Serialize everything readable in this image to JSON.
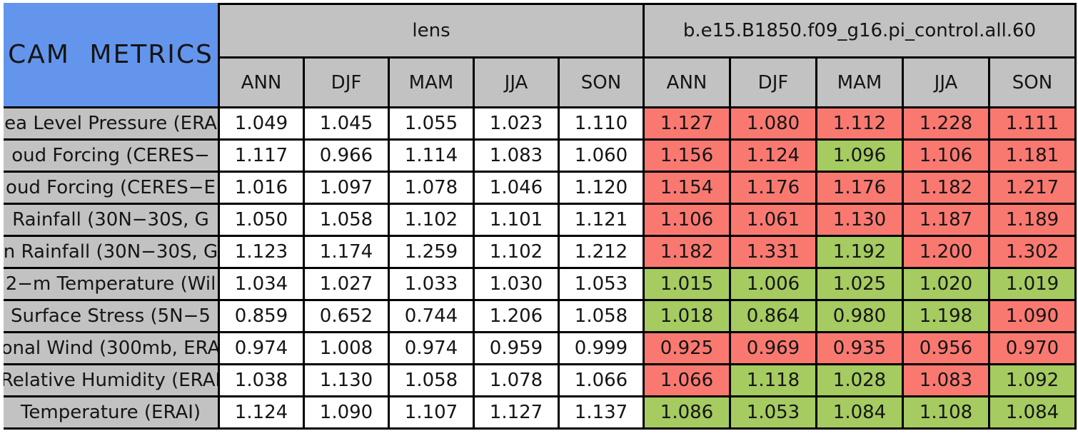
{
  "title": "CAM METRICS",
  "groups": [
    {
      "label": "lens"
    },
    {
      "label": "b.e15.B1850.f09_g16.pi_control.all.60"
    }
  ],
  "seasons": [
    "ANN",
    "DJF",
    "MAM",
    "JJA",
    "SON"
  ],
  "colors": {
    "title_bg": "#6495ed",
    "header_bg": "#c2c2c2",
    "lens_cell_bg": "#ffffff",
    "worse_red": "#f97971",
    "better_green": "#a5cb61",
    "border": "#000000"
  },
  "rows": [
    {
      "label": "ea Level Pressure (ERA",
      "lens": [
        "1.049",
        "1.045",
        "1.055",
        "1.023",
        "1.110"
      ],
      "control": [
        "1.127",
        "1.080",
        "1.112",
        "1.228",
        "1.111"
      ],
      "control_bg": [
        "#f97971",
        "#f97971",
        "#f97971",
        "#f97971",
        "#f97971"
      ]
    },
    {
      "label": "oud Forcing (CERES−",
      "lens": [
        "1.117",
        "0.966",
        "1.114",
        "1.083",
        "1.060"
      ],
      "control": [
        "1.156",
        "1.124",
        "1.096",
        "1.106",
        "1.181"
      ],
      "control_bg": [
        "#f97971",
        "#f97971",
        "#a5cb61",
        "#f97971",
        "#f97971"
      ]
    },
    {
      "label": "oud Forcing (CERES−E",
      "lens": [
        "1.016",
        "1.097",
        "1.078",
        "1.046",
        "1.120"
      ],
      "control": [
        "1.154",
        "1.176",
        "1.176",
        "1.182",
        "1.217"
      ],
      "control_bg": [
        "#f97971",
        "#f97971",
        "#f97971",
        "#f97971",
        "#f97971"
      ]
    },
    {
      "label": "Rainfall (30N−30S, G",
      "lens": [
        "1.050",
        "1.058",
        "1.102",
        "1.101",
        "1.121"
      ],
      "control": [
        "1.106",
        "1.061",
        "1.130",
        "1.187",
        "1.189"
      ],
      "control_bg": [
        "#f97971",
        "#f97971",
        "#f97971",
        "#f97971",
        "#f97971"
      ]
    },
    {
      "label": "n Rainfall (30N−30S, G",
      "lens": [
        "1.123",
        "1.174",
        "1.259",
        "1.102",
        "1.212"
      ],
      "control": [
        "1.182",
        "1.331",
        "1.192",
        "1.200",
        "1.302"
      ],
      "control_bg": [
        "#f97971",
        "#f97971",
        "#a5cb61",
        "#f97971",
        "#f97971"
      ]
    },
    {
      "label": "2−m Temperature (Wil",
      "lens": [
        "1.034",
        "1.027",
        "1.033",
        "1.030",
        "1.053"
      ],
      "control": [
        "1.015",
        "1.006",
        "1.025",
        "1.020",
        "1.019"
      ],
      "control_bg": [
        "#a5cb61",
        "#a5cb61",
        "#a5cb61",
        "#a5cb61",
        "#a5cb61"
      ]
    },
    {
      "label": "Surface Stress (5N−5",
      "lens": [
        "0.859",
        "0.652",
        "0.744",
        "1.206",
        "1.058"
      ],
      "control": [
        "1.018",
        "0.864",
        "0.980",
        "1.198",
        "1.090"
      ],
      "control_bg": [
        "#a5cb61",
        "#a5cb61",
        "#a5cb61",
        "#a5cb61",
        "#f97971"
      ]
    },
    {
      "label": "onal Wind (300mb, ERA",
      "lens": [
        "0.974",
        "1.008",
        "0.974",
        "0.959",
        "0.999"
      ],
      "control": [
        "0.925",
        "0.969",
        "0.935",
        "0.956",
        "0.970"
      ],
      "control_bg": [
        "#f97971",
        "#f97971",
        "#f97971",
        "#f97971",
        "#f97971"
      ]
    },
    {
      "label": "Relative Humidity (ERAI",
      "lens": [
        "1.038",
        "1.130",
        "1.058",
        "1.078",
        "1.066"
      ],
      "control": [
        "1.066",
        "1.118",
        "1.028",
        "1.083",
        "1.092"
      ],
      "control_bg": [
        "#f97971",
        "#a5cb61",
        "#a5cb61",
        "#f97971",
        "#a5cb61"
      ]
    },
    {
      "label": "Temperature (ERAI)",
      "lens": [
        "1.124",
        "1.090",
        "1.107",
        "1.127",
        "1.137"
      ],
      "control": [
        "1.086",
        "1.053",
        "1.084",
        "1.108",
        "1.084"
      ],
      "control_bg": [
        "#a5cb61",
        "#a5cb61",
        "#a5cb61",
        "#a5cb61",
        "#a5cb61"
      ]
    }
  ],
  "chart_data": {
    "type": "table",
    "title": "CAM METRICS",
    "column_groups": [
      "lens",
      "b.e15.B1850.f09_g16.pi_control.all.60"
    ],
    "columns": [
      "ANN",
      "DJF",
      "MAM",
      "JJA",
      "SON"
    ],
    "rows": [
      {
        "label": "ea Level Pressure (ERA",
        "lens": [
          1.049,
          1.045,
          1.055,
          1.023,
          1.11
        ],
        "control": [
          1.127,
          1.08,
          1.112,
          1.228,
          1.111
        ],
        "control_highlight": [
          "red",
          "red",
          "red",
          "red",
          "red"
        ]
      },
      {
        "label": "oud Forcing (CERES−",
        "lens": [
          1.117,
          0.966,
          1.114,
          1.083,
          1.06
        ],
        "control": [
          1.156,
          1.124,
          1.096,
          1.106,
          1.181
        ],
        "control_highlight": [
          "red",
          "red",
          "green",
          "red",
          "red"
        ]
      },
      {
        "label": "oud Forcing (CERES−E",
        "lens": [
          1.016,
          1.097,
          1.078,
          1.046,
          1.12
        ],
        "control": [
          1.154,
          1.176,
          1.176,
          1.182,
          1.217
        ],
        "control_highlight": [
          "red",
          "red",
          "red",
          "red",
          "red"
        ]
      },
      {
        "label": "Rainfall (30N−30S, G",
        "lens": [
          1.05,
          1.058,
          1.102,
          1.101,
          1.121
        ],
        "control": [
          1.106,
          1.061,
          1.13,
          1.187,
          1.189
        ],
        "control_highlight": [
          "red",
          "red",
          "red",
          "red",
          "red"
        ]
      },
      {
        "label": "n Rainfall (30N−30S, G",
        "lens": [
          1.123,
          1.174,
          1.259,
          1.102,
          1.212
        ],
        "control": [
          1.182,
          1.331,
          1.192,
          1.2,
          1.302
        ],
        "control_highlight": [
          "red",
          "red",
          "green",
          "red",
          "red"
        ]
      },
      {
        "label": "2−m Temperature (Wil",
        "lens": [
          1.034,
          1.027,
          1.033,
          1.03,
          1.053
        ],
        "control": [
          1.015,
          1.006,
          1.025,
          1.02,
          1.019
        ],
        "control_highlight": [
          "green",
          "green",
          "green",
          "green",
          "green"
        ]
      },
      {
        "label": "Surface Stress (5N−5",
        "lens": [
          0.859,
          0.652,
          0.744,
          1.206,
          1.058
        ],
        "control": [
          1.018,
          0.864,
          0.98,
          1.198,
          1.09
        ],
        "control_highlight": [
          "green",
          "green",
          "green",
          "green",
          "red"
        ]
      },
      {
        "label": "onal Wind (300mb, ERA",
        "lens": [
          0.974,
          1.008,
          0.974,
          0.959,
          0.999
        ],
        "control": [
          0.925,
          0.969,
          0.935,
          0.956,
          0.97
        ],
        "control_highlight": [
          "red",
          "red",
          "red",
          "red",
          "red"
        ]
      },
      {
        "label": "Relative Humidity (ERAI",
        "lens": [
          1.038,
          1.13,
          1.058,
          1.078,
          1.066
        ],
        "control": [
          1.066,
          1.118,
          1.028,
          1.083,
          1.092
        ],
        "control_highlight": [
          "red",
          "green",
          "green",
          "red",
          "green"
        ]
      },
      {
        "label": "Temperature (ERAI)",
        "lens": [
          1.124,
          1.09,
          1.107,
          1.127,
          1.137
        ],
        "control": [
          1.086,
          1.053,
          1.084,
          1.108,
          1.084
        ],
        "control_highlight": [
          "green",
          "green",
          "green",
          "green",
          "green"
        ]
      }
    ]
  }
}
